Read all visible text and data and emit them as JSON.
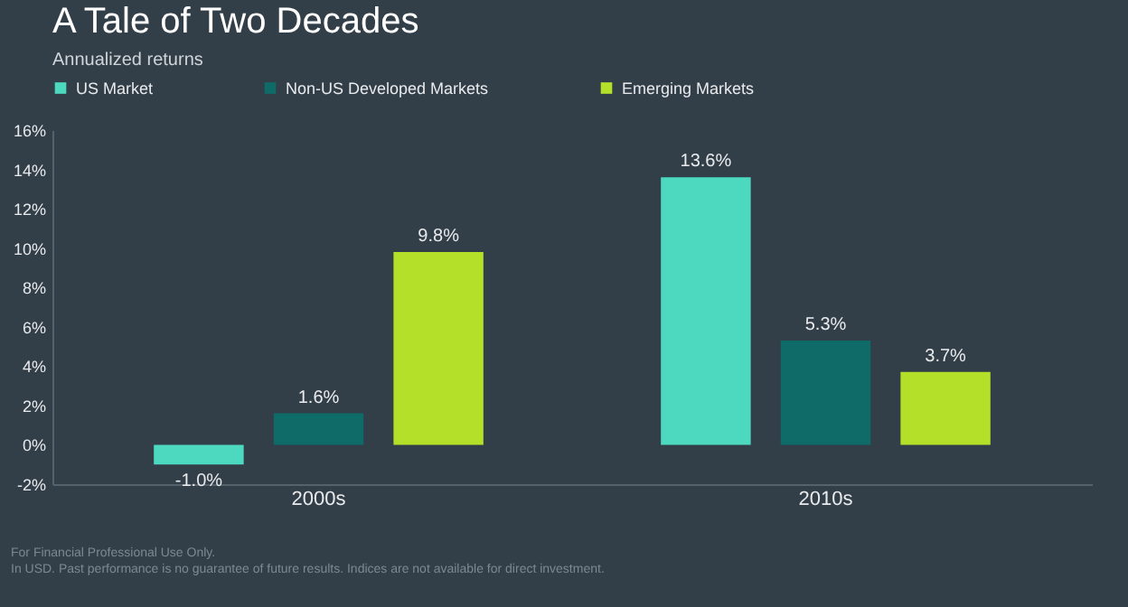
{
  "chart_data": {
    "type": "bar",
    "title": "A Tale of Two Decades",
    "subtitle": "Annualized returns",
    "categories": [
      "2000s",
      "2010s"
    ],
    "series": [
      {
        "name": "US Market",
        "color": "#4dd9bf",
        "values": [
          -1.0,
          13.6
        ],
        "value_labels": [
          "-1.0%",
          "13.6%"
        ]
      },
      {
        "name": "Non-US Developed Markets",
        "color": "#0f6b68",
        "values": [
          1.6,
          5.3
        ],
        "value_labels": [
          "1.6%",
          "5.3%"
        ]
      },
      {
        "name": "Emerging Markets",
        "color": "#b5e02a",
        "values": [
          9.8,
          3.7
        ],
        "value_labels": [
          "9.8%",
          "3.7%"
        ]
      }
    ],
    "ylim": [
      -2,
      16
    ],
    "yticks": [
      {
        "value": -2,
        "label": "-2%"
      },
      {
        "value": 0,
        "label": "0%"
      },
      {
        "value": 2,
        "label": "2%"
      },
      {
        "value": 4,
        "label": "4%"
      },
      {
        "value": 6,
        "label": "6%"
      },
      {
        "value": 8,
        "label": "8%"
      },
      {
        "value": 10,
        "label": "10%"
      },
      {
        "value": 12,
        "label": "12%"
      },
      {
        "value": 14,
        "label": "14%"
      },
      {
        "value": 16,
        "label": "16%"
      }
    ],
    "grid": false,
    "legend": "top",
    "annotations": [
      "For Financial Professional Use Only.",
      "In USD. Past performance is no guarantee of future results. Indices are not available for direct investment."
    ]
  }
}
